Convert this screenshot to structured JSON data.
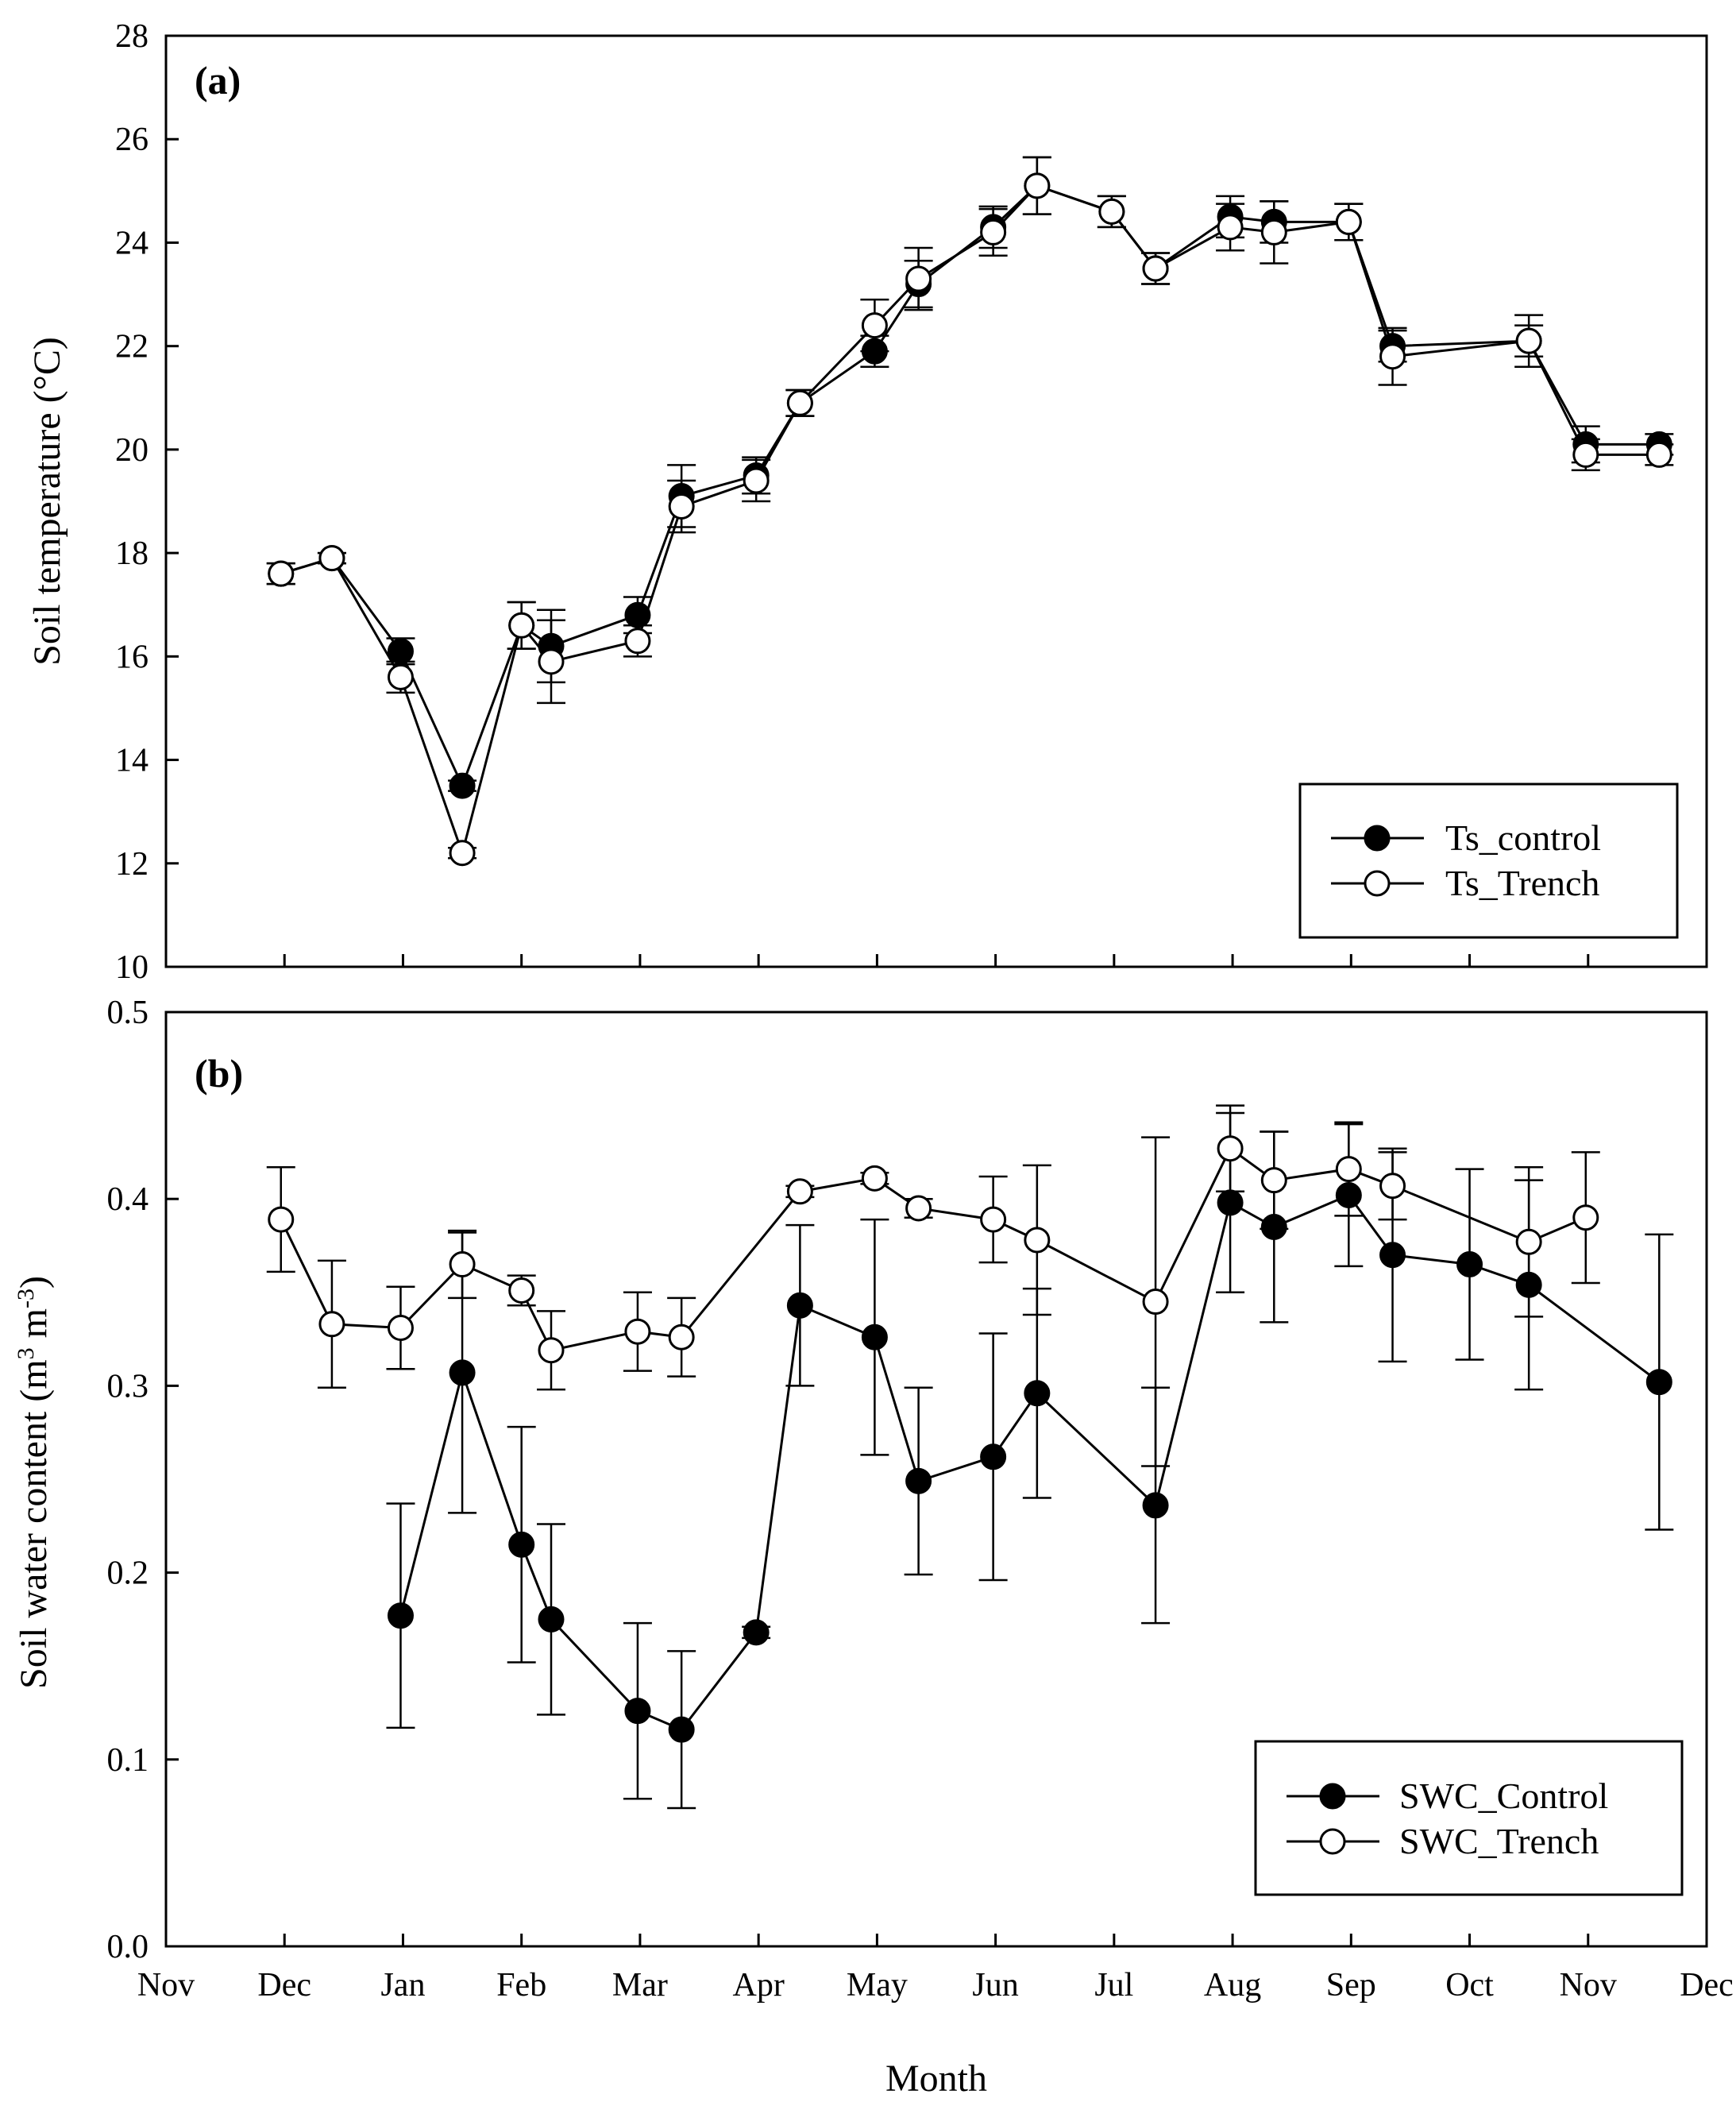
{
  "chart_data": [
    {
      "type": "line",
      "panel_label": "(a)",
      "ylabel": "Soil temperature (°C)",
      "xlabel": "",
      "ylim": [
        10,
        28
      ],
      "yticks": [
        10,
        12,
        14,
        16,
        18,
        20,
        22,
        24,
        26,
        28
      ],
      "xlim": [
        0,
        13
      ],
      "legend_position": "bottom-right",
      "series": [
        {
          "name": "Ts_control",
          "marker": "filled",
          "x": [
            0.97,
            1.4,
            1.98,
            2.5,
            3.0,
            3.25,
            3.98,
            4.35,
            4.98,
            5.35,
            5.98,
            6.35,
            6.98,
            7.35,
            7.98,
            8.35,
            8.98,
            9.35,
            9.98,
            10.35,
            11.5,
            11.98,
            12.6
          ],
          "y": [
            17.6,
            17.9,
            16.1,
            13.5,
            16.6,
            16.2,
            16.8,
            19.1,
            19.5,
            20.9,
            21.9,
            23.2,
            24.3,
            25.1,
            24.6,
            23.5,
            24.5,
            24.4,
            24.4,
            22.0,
            22.1,
            20.1,
            20.1
          ],
          "err": [
            0.2,
            0.1,
            0.25,
            0.1,
            0.45,
            0.7,
            0.35,
            0.6,
            0.35,
            0.25,
            0.3,
            0.45,
            0.4,
            0.55,
            0.3,
            0.3,
            0.4,
            0.4,
            0.35,
            0.3,
            0.3,
            0.35,
            0.2
          ]
        },
        {
          "name": "Ts_Trench",
          "marker": "open",
          "x": [
            0.97,
            1.4,
            1.98,
            2.5,
            3.0,
            3.25,
            3.98,
            4.35,
            4.98,
            5.35,
            5.98,
            6.35,
            6.98,
            7.35,
            7.98,
            8.35,
            8.98,
            9.35,
            9.98,
            10.35,
            11.5,
            11.98,
            12.6
          ],
          "y": [
            17.6,
            17.9,
            15.6,
            12.2,
            16.6,
            15.9,
            16.3,
            18.9,
            19.4,
            20.9,
            22.4,
            23.3,
            24.2,
            25.1,
            24.6,
            23.5,
            24.3,
            24.2,
            24.4,
            21.8,
            22.1,
            19.9,
            19.9
          ],
          "err": [
            0.2,
            0.1,
            0.3,
            0.1,
            0.45,
            0.8,
            0.3,
            0.5,
            0.4,
            0.25,
            0.5,
            0.6,
            0.45,
            0.55,
            0.3,
            0.3,
            0.45,
            0.6,
            0.35,
            0.55,
            0.5,
            0.3,
            0.2
          ]
        }
      ]
    },
    {
      "type": "line",
      "panel_label": "(b)",
      "ylabel": "Soil water content (m",
      "ylabel_sup1": "3",
      "ylabel_mid": " m",
      "ylabel_sup2": "-3",
      "ylabel_end": ")",
      "xlabel": "Month",
      "ylim": [
        0.0,
        0.5
      ],
      "yticks": [
        "0.0",
        "0.1",
        "0.2",
        "0.3",
        "0.4",
        "0.5"
      ],
      "xlim": [
        0,
        13
      ],
      "xticklabels": [
        "Nov",
        "Dec",
        "Jan",
        "Feb",
        "Mar",
        "Apr",
        "May",
        "Jun",
        "Jul",
        "Aug",
        "Sep",
        "Oct",
        "Nov",
        "Dec"
      ],
      "legend_position": "bottom-right",
      "series": [
        {
          "name": "SWC_Control",
          "marker": "filled",
          "x": [
            1.98,
            2.5,
            3.0,
            3.25,
            3.98,
            4.35,
            4.98,
            5.35,
            5.98,
            6.35,
            6.98,
            7.35,
            8.35,
            8.98,
            9.35,
            9.98,
            10.35,
            11.0,
            11.5,
            12.6
          ],
          "y": [
            0.177,
            0.307,
            0.215,
            0.175,
            0.126,
            0.116,
            0.168,
            0.343,
            0.326,
            0.249,
            0.262,
            0.296,
            0.236,
            0.398,
            0.385,
            0.402,
            0.37,
            0.365,
            0.354,
            0.302
          ],
          "err": [
            0.06,
            0.075,
            0.063,
            0.051,
            0.047,
            0.042,
            0.003,
            0.043,
            0.063,
            0.05,
            0.066,
            0.056,
            0.063,
            0.048,
            0.051,
            0.038,
            0.057,
            0.051,
            0.056,
            0.079
          ]
        },
        {
          "name": "SWC_Trench",
          "marker": "open",
          "x": [
            0.97,
            1.4,
            1.98,
            2.5,
            3.0,
            3.25,
            3.98,
            4.35,
            5.35,
            5.98,
            6.35,
            6.98,
            7.35,
            8.35,
            8.98,
            9.35,
            9.98,
            10.35,
            11.5,
            11.98
          ],
          "y": [
            0.389,
            0.333,
            0.331,
            0.365,
            0.351,
            0.319,
            0.329,
            0.326,
            0.404,
            0.411,
            0.395,
            0.389,
            0.378,
            0.345,
            0.427,
            0.41,
            0.416,
            0.407,
            0.377,
            0.39
          ],
          "err": [
            0.028,
            0.034,
            0.022,
            0.018,
            0.008,
            0.021,
            0.021,
            0.021,
            0.003,
            0.003,
            0.005,
            0.023,
            0.04,
            0.088,
            0.023,
            0.026,
            0.025,
            0.018,
            0.04,
            0.035
          ]
        }
      ]
    }
  ]
}
